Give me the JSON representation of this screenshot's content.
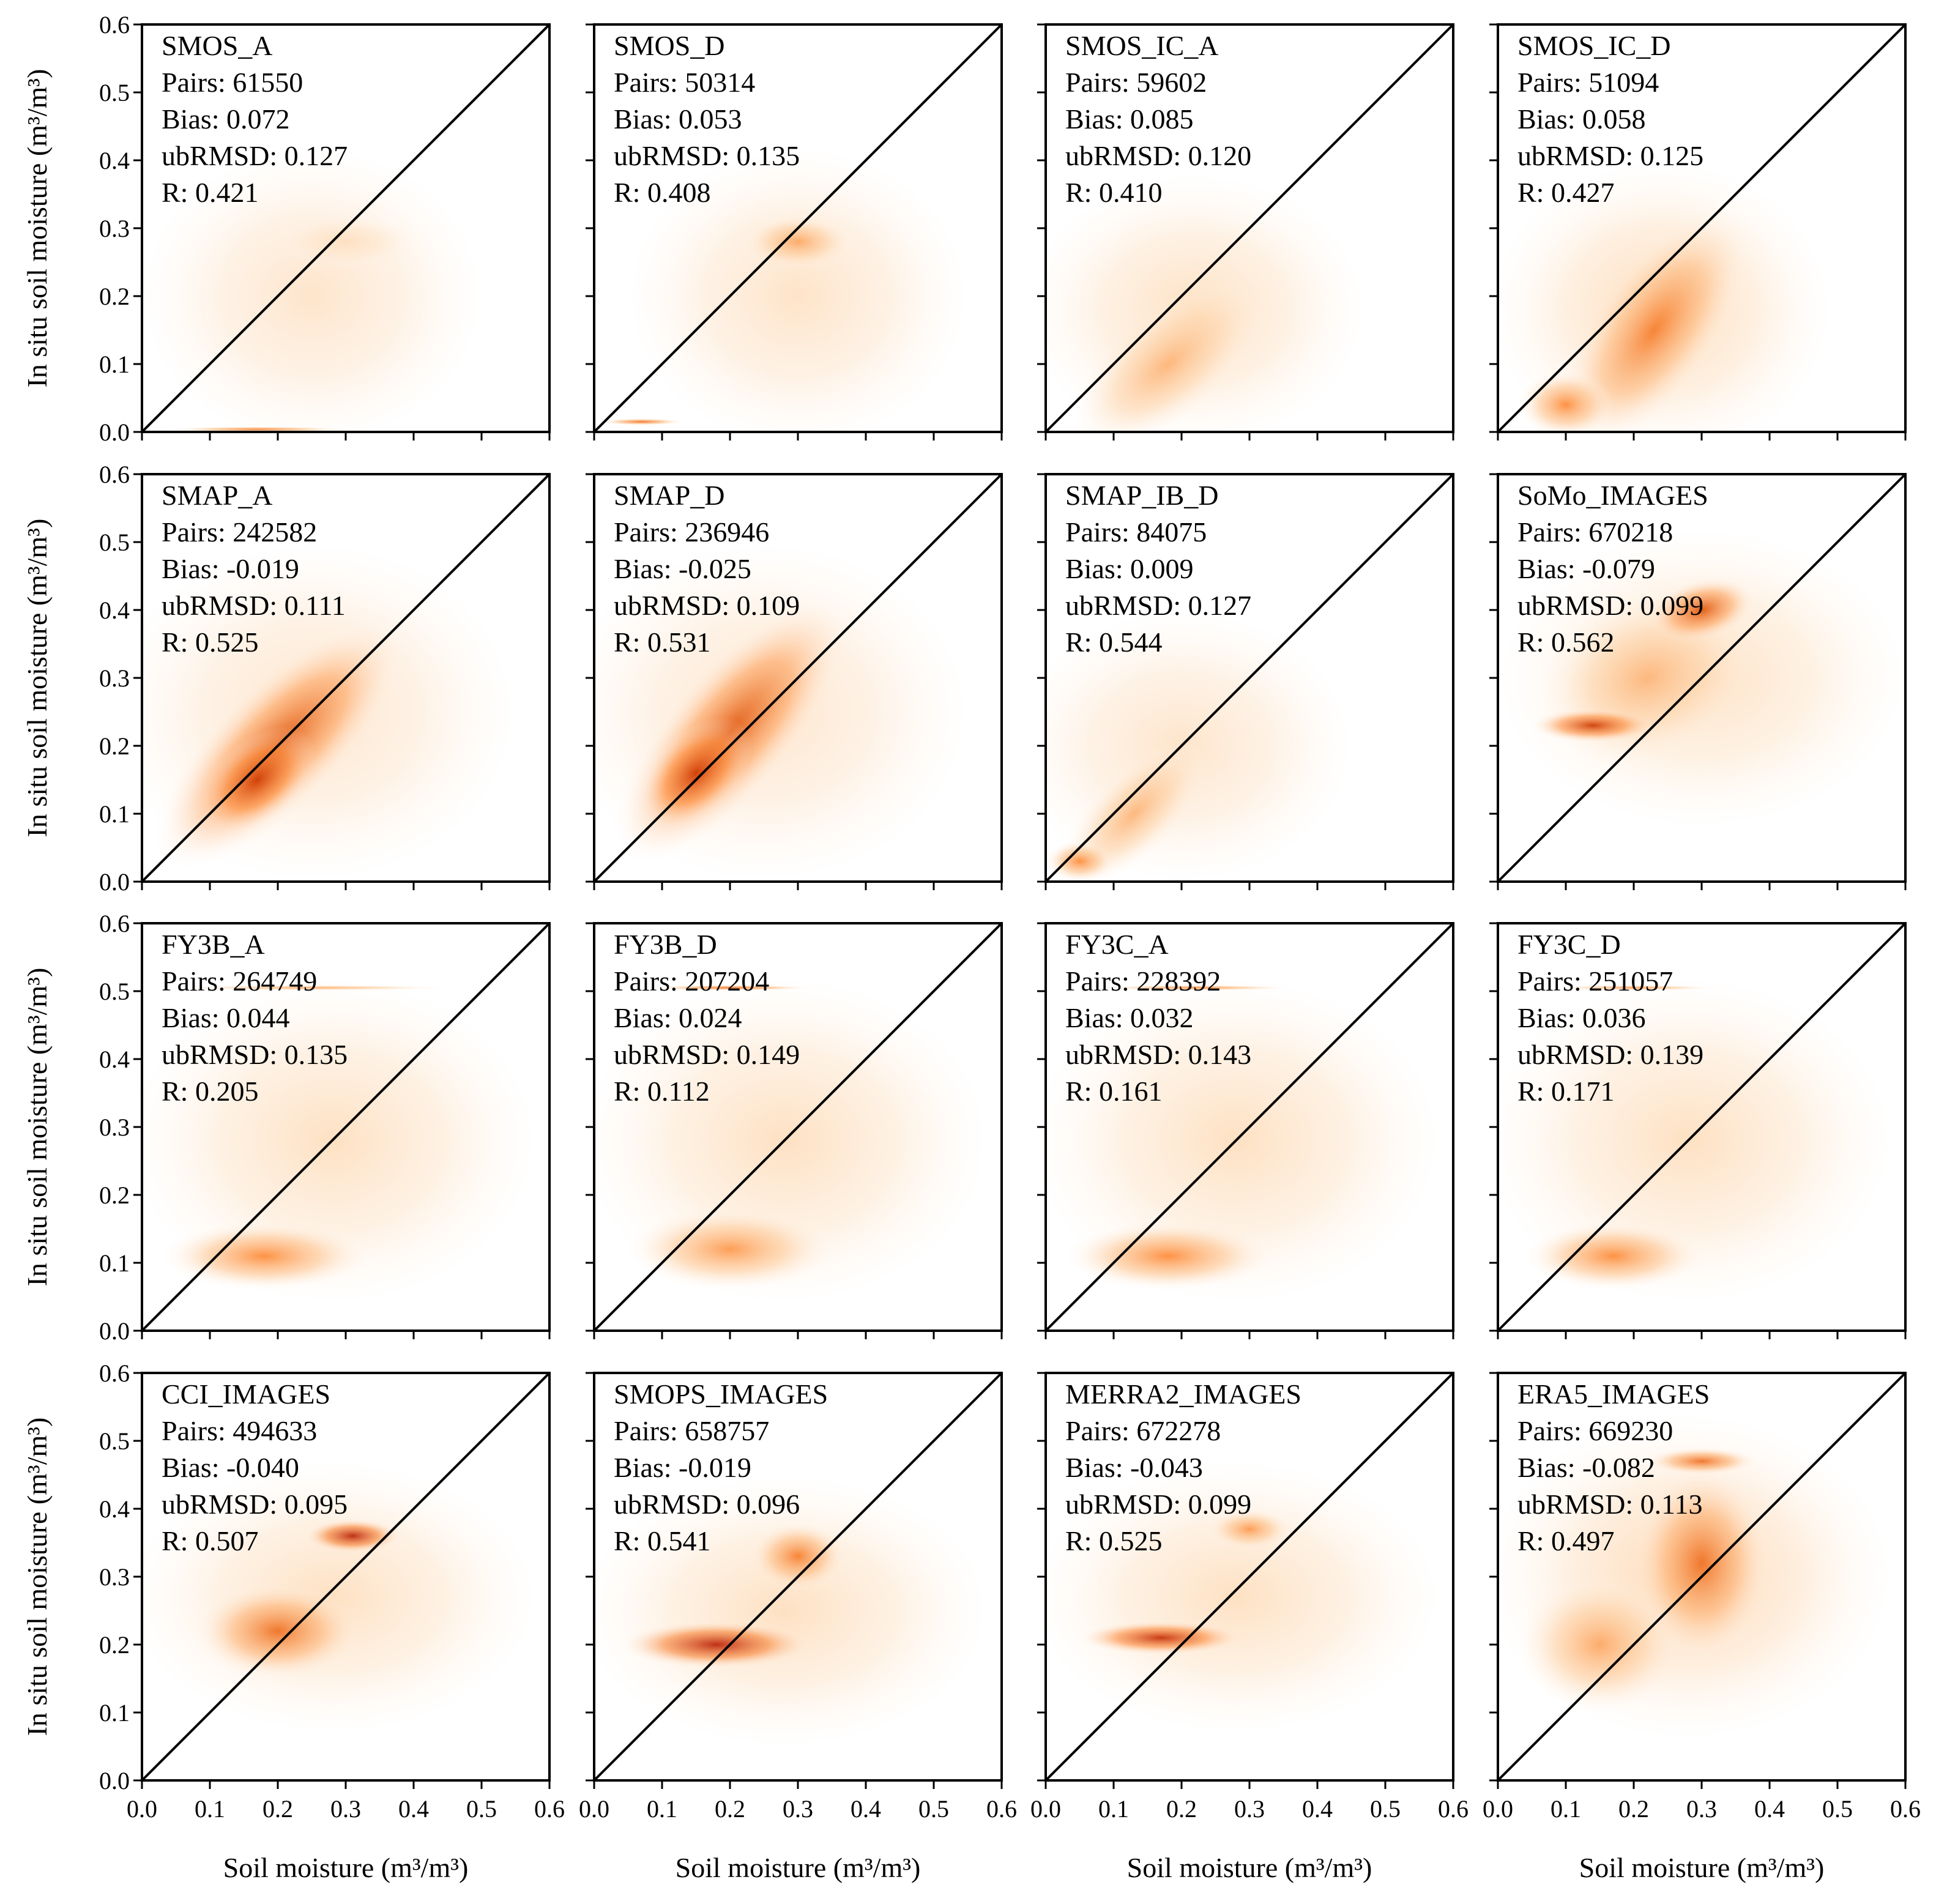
{
  "chart_data": {
    "type": "heatmap",
    "layout": "4x4 grid of 2D density scatter plots",
    "xlabel": "Soil moisture (m³/m³)",
    "ylabel": "In situ soil moisture (m³/m³)",
    "xlim": [
      0.0,
      0.6
    ],
    "ylim": [
      0.0,
      0.6
    ],
    "xticks": [
      "0.0",
      "0.1",
      "0.2",
      "0.3",
      "0.4",
      "0.5",
      "0.6"
    ],
    "yticks": [
      "0.0",
      "0.1",
      "0.2",
      "0.3",
      "0.4",
      "0.5",
      "0.6"
    ],
    "reference_line": "1:1",
    "colormap": [
      "#fff5eb",
      "#fdd0a2",
      "#fd8d3c",
      "#d94801",
      "#a50f15"
    ],
    "panels": [
      {
        "name": "SMOS_A",
        "pairs": "Pairs: 61550",
        "bias": "Bias: 0.072",
        "ubrmsd": "ubRMSD: 0.127",
        "r": "R: 0.421",
        "density": [
          [
            0.25,
            0.2,
            0.25,
            0.22,
            0.12,
            0
          ],
          [
            0.3,
            0.28,
            0.1,
            0.04,
            0.15,
            0
          ],
          [
            0.17,
            0.004,
            0.13,
            0.004,
            0.55,
            0
          ]
        ]
      },
      {
        "name": "SMOS_D",
        "pairs": "Pairs: 50314",
        "bias": "Bias: 0.053",
        "ubrmsd": "ubRMSD: 0.135",
        "r": "R: 0.408",
        "density": [
          [
            0.3,
            0.2,
            0.25,
            0.22,
            0.13,
            0
          ],
          [
            0.3,
            0.28,
            0.08,
            0.04,
            0.4,
            0
          ],
          [
            0.07,
            0.015,
            0.06,
            0.005,
            0.6,
            0
          ]
        ]
      },
      {
        "name": "SMOS_IC_A",
        "pairs": "Pairs: 59602",
        "bias": "Bias: 0.085",
        "ubrmsd": "ubRMSD: 0.120",
        "r": "R: 0.410",
        "density": [
          [
            0.22,
            0.18,
            0.25,
            0.2,
            0.15,
            0
          ],
          [
            0.18,
            0.1,
            0.17,
            0.08,
            0.35,
            -40
          ]
        ]
      },
      {
        "name": "SMOS_IC_D",
        "pairs": "Pairs: 51094",
        "bias": "Bias: 0.058",
        "ubrmsd": "ubRMSD: 0.125",
        "r": "R: 0.427",
        "density": [
          [
            0.24,
            0.18,
            0.25,
            0.22,
            0.18,
            0
          ],
          [
            0.23,
            0.15,
            0.2,
            0.09,
            0.55,
            -55
          ],
          [
            0.1,
            0.04,
            0.07,
            0.05,
            0.5,
            0
          ]
        ]
      },
      {
        "name": "SMAP_A",
        "pairs": "Pairs: 242582",
        "bias": "Bias: -0.019",
        "ubrmsd": "ubRMSD: 0.111",
        "r": "R: 0.525",
        "density": [
          [
            0.25,
            0.25,
            0.3,
            0.25,
            0.12,
            0
          ],
          [
            0.2,
            0.2,
            0.24,
            0.09,
            0.7,
            -45
          ],
          [
            0.17,
            0.15,
            0.1,
            0.06,
            0.8,
            -40
          ]
        ]
      },
      {
        "name": "SMAP_D",
        "pairs": "Pairs: 236946",
        "bias": "Bias: -0.025",
        "ubrmsd": "ubRMSD: 0.109",
        "r": "R: 0.531",
        "density": [
          [
            0.25,
            0.25,
            0.3,
            0.25,
            0.12,
            0
          ],
          [
            0.2,
            0.22,
            0.24,
            0.09,
            0.7,
            -50
          ],
          [
            0.15,
            0.16,
            0.1,
            0.06,
            0.8,
            -45
          ]
        ]
      },
      {
        "name": "SMAP_IB_D",
        "pairs": "Pairs: 84075",
        "bias": "Bias: 0.009",
        "ubrmsd": "ubRMSD: 0.127",
        "r": "R: 0.544",
        "density": [
          [
            0.2,
            0.2,
            0.25,
            0.2,
            0.12,
            0
          ],
          [
            0.13,
            0.1,
            0.14,
            0.06,
            0.35,
            -45
          ],
          [
            0.05,
            0.03,
            0.05,
            0.03,
            0.5,
            0
          ]
        ]
      },
      {
        "name": "SoMo_IMAGES",
        "pairs": "Pairs: 670218",
        "bias": "Bias: -0.079",
        "ubrmsd": "ubRMSD: 0.099",
        "r": "R: 0.562",
        "density": [
          [
            0.3,
            0.3,
            0.3,
            0.22,
            0.14,
            0
          ],
          [
            0.22,
            0.3,
            0.16,
            0.12,
            0.35,
            -20
          ],
          [
            0.14,
            0.23,
            0.09,
            0.025,
            0.8,
            0
          ],
          [
            0.3,
            0.4,
            0.08,
            0.045,
            0.7,
            -15
          ]
        ]
      },
      {
        "name": "FY3B_A",
        "pairs": "Pairs: 264749",
        "bias": "Bias: 0.044",
        "ubrmsd": "ubRMSD: 0.135",
        "r": "R: 0.205",
        "density": [
          [
            0.28,
            0.28,
            0.3,
            0.24,
            0.15,
            0
          ],
          [
            0.18,
            0.11,
            0.15,
            0.05,
            0.5,
            0
          ],
          [
            0.25,
            0.505,
            0.2,
            0.004,
            0.4,
            0
          ]
        ]
      },
      {
        "name": "FY3B_D",
        "pairs": "Pairs: 207204",
        "bias": "Bias: 0.024",
        "ubrmsd": "ubRMSD: 0.149",
        "r": "R: 0.112",
        "density": [
          [
            0.28,
            0.28,
            0.3,
            0.24,
            0.15,
            0
          ],
          [
            0.2,
            0.12,
            0.15,
            0.06,
            0.45,
            0
          ],
          [
            0.2,
            0.505,
            0.12,
            0.004,
            0.6,
            0
          ]
        ]
      },
      {
        "name": "FY3C_A",
        "pairs": "Pairs: 228392",
        "bias": "Bias: 0.032",
        "ubrmsd": "ubRMSD: 0.143",
        "r": "R: 0.161",
        "density": [
          [
            0.28,
            0.28,
            0.3,
            0.24,
            0.15,
            0
          ],
          [
            0.18,
            0.11,
            0.15,
            0.05,
            0.5,
            0
          ],
          [
            0.22,
            0.505,
            0.14,
            0.004,
            0.5,
            0
          ]
        ]
      },
      {
        "name": "FY3C_D",
        "pairs": "Pairs: 251057",
        "bias": "Bias: 0.036",
        "ubrmsd": "ubRMSD: 0.139",
        "r": "R: 0.171",
        "density": [
          [
            0.28,
            0.28,
            0.3,
            0.24,
            0.15,
            0
          ],
          [
            0.17,
            0.11,
            0.13,
            0.05,
            0.5,
            0
          ],
          [
            0.2,
            0.505,
            0.12,
            0.004,
            0.45,
            0
          ]
        ]
      },
      {
        "name": "CCI_IMAGES",
        "pairs": "Pairs: 494633",
        "bias": "Bias: -0.040",
        "ubrmsd": "ubRMSD: 0.095",
        "r": "R: 0.507",
        "density": [
          [
            0.28,
            0.27,
            0.3,
            0.2,
            0.15,
            0
          ],
          [
            0.2,
            0.22,
            0.12,
            0.07,
            0.6,
            0
          ],
          [
            0.31,
            0.36,
            0.07,
            0.025,
            0.9,
            0
          ]
        ]
      },
      {
        "name": "SMOPS_IMAGES",
        "pairs": "Pairs: 658757",
        "bias": "Bias: -0.019",
        "ubrmsd": "ubRMSD: 0.096",
        "r": "R: 0.541",
        "density": [
          [
            0.28,
            0.25,
            0.3,
            0.2,
            0.15,
            0
          ],
          [
            0.18,
            0.2,
            0.14,
            0.035,
            0.9,
            0
          ],
          [
            0.3,
            0.33,
            0.07,
            0.05,
            0.55,
            0
          ]
        ]
      },
      {
        "name": "MERRA2_IMAGES",
        "pairs": "Pairs: 672278",
        "bias": "Bias: -0.043",
        "ubrmsd": "ubRMSD: 0.099",
        "r": "R: 0.525",
        "density": [
          [
            0.28,
            0.27,
            0.3,
            0.2,
            0.15,
            0
          ],
          [
            0.17,
            0.21,
            0.12,
            0.025,
            0.85,
            0
          ],
          [
            0.3,
            0.37,
            0.06,
            0.03,
            0.45,
            0
          ]
        ]
      },
      {
        "name": "ERA5_IMAGES",
        "pairs": "Pairs: 669230",
        "bias": "Bias: -0.082",
        "ubrmsd": "ubRMSD: 0.113",
        "r": "R: 0.497",
        "density": [
          [
            0.28,
            0.3,
            0.3,
            0.24,
            0.2,
            0
          ],
          [
            0.15,
            0.2,
            0.12,
            0.1,
            0.4,
            0
          ],
          [
            0.3,
            0.32,
            0.1,
            0.14,
            0.6,
            0
          ],
          [
            0.3,
            0.47,
            0.08,
            0.02,
            0.6,
            0
          ]
        ]
      }
    ]
  }
}
